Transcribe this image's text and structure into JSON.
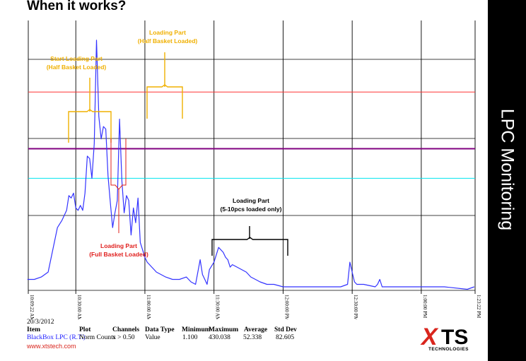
{
  "slide": {
    "title": "When it works?",
    "side_label": "LPC Monitoring",
    "website": "www.xtstech.com",
    "logo": {
      "mark": "X",
      "rest": "TS",
      "sub": "TECHNOLOGIES",
      "accent_color": "#d9251d"
    }
  },
  "chart_data": {
    "type": "line",
    "series": [
      {
        "name": "BlackBox LPC (R.T.)",
        "color": "#3333ff",
        "x": [
          "10:09",
          "10:12",
          "10:15",
          "10:18",
          "10:22",
          "10:24",
          "10:26",
          "10:27",
          "10:28",
          "10:29",
          "10:30",
          "10:31",
          "10:32",
          "10:33",
          "10:34",
          "10:35",
          "10:36",
          "10:37",
          "10:38",
          "10:39",
          "10:40",
          "10:41",
          "10:42",
          "10:43",
          "10:44",
          "10:45",
          "10:46",
          "10:47",
          "10:48",
          "10:49",
          "10:50",
          "10:51",
          "10:52",
          "10:53",
          "10:54",
          "10:55",
          "10:56",
          "10:57",
          "10:58",
          "10:59",
          "11:00",
          "11:01",
          "11:02",
          "11:03",
          "11:04",
          "11:05",
          "11:07",
          "11:09",
          "11:12",
          "11:15",
          "11:18",
          "11:20",
          "11:22",
          "11:24",
          "11:25",
          "11:26",
          "11:27",
          "11:28",
          "11:30",
          "11:32",
          "11:34",
          "11:35",
          "11:36",
          "11:37",
          "11:38",
          "11:40",
          "11:42",
          "11:44",
          "11:46",
          "11:48",
          "11:50",
          "11:53",
          "11:56",
          "12:00",
          "12:05",
          "12:10",
          "12:15",
          "12:20",
          "12:25",
          "12:28",
          "12:29",
          "12:30",
          "12:31",
          "12:32",
          "12:35",
          "12:40",
          "12:41",
          "12:42",
          "12:43",
          "12:50",
          "13:00",
          "13:10",
          "13:20",
          "13:23"
        ],
        "y": [
          5,
          5,
          6,
          8,
          26,
          29,
          33,
          39,
          38,
          40,
          34,
          33,
          35,
          33,
          40,
          55,
          54,
          46,
          60,
          102,
          71,
          62,
          67,
          66,
          47,
          36,
          26,
          32,
          37,
          70,
          45,
          32,
          39,
          37,
          23,
          34,
          28,
          38,
          20,
          17,
          14,
          12,
          11,
          10,
          9,
          8,
          7,
          6,
          5,
          5,
          6,
          4,
          3,
          13,
          7,
          5,
          3,
          9,
          12,
          18,
          16,
          14,
          13,
          10,
          11,
          10,
          9,
          8,
          6,
          5,
          4,
          3,
          3,
          2,
          2,
          2,
          2,
          2,
          2,
          3,
          12,
          8,
          4,
          3,
          3,
          2,
          3,
          5,
          2,
          2,
          2,
          2,
          1,
          2
        ]
      }
    ],
    "xaxis": {
      "ticks": [
        "10:09:22 AM",
        "10:30:00 AM",
        "11:00:00 AM",
        "11:30:00 AM",
        "12:00:00 PM",
        "12:30:00 PM",
        "1:00:00 PM",
        "1:23:22 PM"
      ],
      "date_label": "20/3/2012"
    },
    "ylim": [
      0,
      110
    ],
    "grid": true,
    "reference_lines": [
      {
        "y": 81,
        "color": "#ff3333"
      },
      {
        "y": 58,
        "color": "#800080"
      },
      {
        "y": 46,
        "color": "#00e5ee"
      }
    ],
    "annotations": [
      {
        "lines": [
          "Start Loading Part",
          "(Half Basket Loaded)"
        ],
        "color": "#f0b000"
      },
      {
        "lines": [
          "Loading Part",
          "(Half Basket Loaded)"
        ],
        "color": "#f0b000"
      },
      {
        "lines": [
          "Loading Part",
          "(Full Basket Loaded)"
        ],
        "color": "#e0201e"
      },
      {
        "lines": [
          "Loading Part",
          "(5-10pcs loaded only)"
        ],
        "color": "#000000"
      }
    ],
    "stats": {
      "headers": [
        "Item",
        "Plot",
        "Channels",
        "Data Type",
        "Minimum",
        "Maximum",
        "Average",
        "Std Dev"
      ],
      "values": [
        "BlackBox LPC (R.T.)",
        "Norm Counts",
        "x > 0.50",
        "Value",
        "1.100",
        "430.038",
        "52.338",
        "82.605"
      ]
    }
  }
}
